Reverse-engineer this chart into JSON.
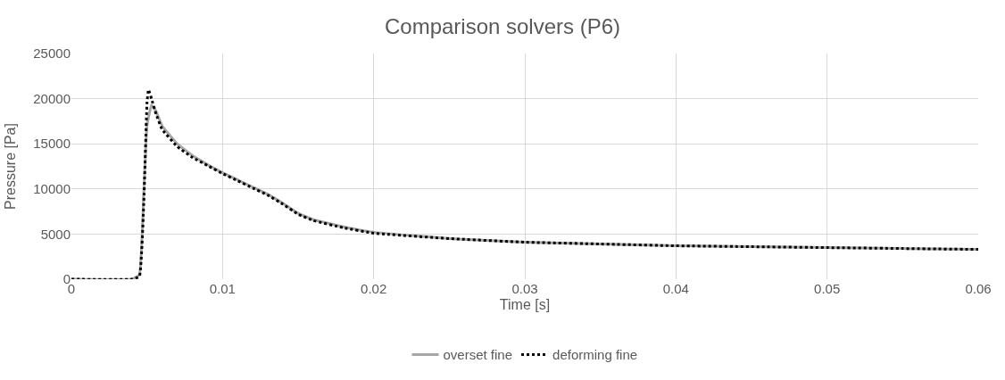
{
  "chart_data": {
    "type": "line",
    "title": "Comparison solvers (P6)",
    "xlabel": "Time [s]",
    "ylabel": "Pressure [Pa]",
    "xlim": [
      0,
      0.06
    ],
    "xticks": [
      0,
      0.01,
      0.02,
      0.03,
      0.04,
      0.05,
      0.06
    ],
    "ylim": [
      0,
      25000
    ],
    "yticks": [
      0,
      5000,
      10000,
      15000,
      20000,
      25000
    ],
    "grid": true,
    "legend": "bottom",
    "series": [
      {
        "name": "overset fine",
        "color": "#a6a6a6",
        "line_style": "solid",
        "x": [
          0,
          0.004,
          0.0045,
          0.0048,
          0.005,
          0.0053,
          0.0056,
          0.006,
          0.007,
          0.008,
          0.009,
          0.01,
          0.011,
          0.012,
          0.013,
          0.014,
          0.015,
          0.016,
          0.018,
          0.02,
          0.025,
          0.03,
          0.035,
          0.04,
          0.045,
          0.05,
          0.055,
          0.06
        ],
        "values": [
          0,
          0,
          500,
          10000,
          17000,
          19300,
          18600,
          17000,
          15000,
          13700,
          12700,
          11800,
          11000,
          10200,
          9400,
          8400,
          7300,
          6600,
          5800,
          5200,
          4500,
          4100,
          3900,
          3700,
          3600,
          3500,
          3400,
          3300
        ]
      },
      {
        "name": "deforming fine",
        "color": "#000000",
        "line_style": "dotted",
        "x": [
          0,
          0.004,
          0.0045,
          0.0048,
          0.005,
          0.0051,
          0.0053,
          0.0056,
          0.006,
          0.007,
          0.008,
          0.009,
          0.01,
          0.011,
          0.012,
          0.013,
          0.014,
          0.015,
          0.016,
          0.018,
          0.02,
          0.025,
          0.03,
          0.035,
          0.04,
          0.045,
          0.05,
          0.055,
          0.06
        ],
        "values": [
          0,
          0,
          300,
          9000,
          19500,
          21000,
          20000,
          18300,
          16600,
          14700,
          13500,
          12600,
          11700,
          10900,
          10100,
          9300,
          8300,
          7200,
          6500,
          5700,
          5100,
          4500,
          4100,
          3900,
          3700,
          3600,
          3500,
          3400,
          3300
        ]
      }
    ]
  }
}
